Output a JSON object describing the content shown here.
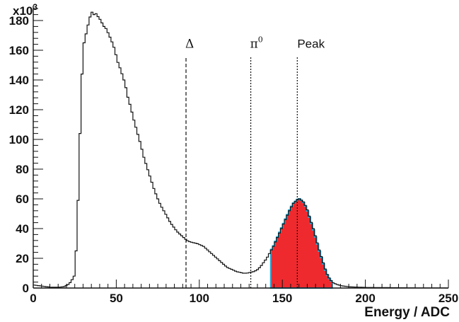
{
  "chart_data": {
    "type": "histogram",
    "title": "",
    "xlabel": "Energy / ADC",
    "ylabel": "",
    "y_multiplier": "x10",
    "y_multiplier_exp": "3",
    "xlim": [
      0,
      250
    ],
    "ylim": [
      0,
      190
    ],
    "x_ticks": [
      0,
      50,
      100,
      150,
      200,
      250
    ],
    "y_ticks": [
      0,
      20,
      40,
      60,
      80,
      100,
      120,
      140,
      160,
      180
    ],
    "grid": false,
    "legend": "none",
    "histogram_x": [
      0,
      10,
      15,
      18,
      20,
      22,
      24,
      25,
      26,
      27,
      28,
      29,
      30,
      31,
      32,
      33,
      34,
      35,
      36,
      37,
      38,
      39,
      40,
      41,
      42,
      43,
      44,
      45,
      46,
      47,
      48,
      49,
      50,
      52,
      54,
      55,
      56,
      58,
      60,
      62,
      64,
      66,
      68,
      70,
      72,
      74,
      76,
      78,
      80,
      82,
      84,
      86,
      88,
      90,
      92,
      94,
      96,
      98,
      100,
      102,
      104,
      106,
      108,
      110,
      112,
      114,
      116,
      118,
      120,
      122,
      124,
      126,
      128,
      130,
      132,
      134,
      136,
      138,
      140,
      142,
      144,
      146,
      148,
      150,
      152,
      154,
      156,
      158,
      159,
      160,
      162,
      164,
      166,
      168,
      170,
      172,
      174,
      176,
      178,
      180,
      182,
      185,
      190,
      200,
      210,
      220,
      230,
      240,
      250
    ],
    "histogram_y": [
      2,
      0.5,
      0.5,
      1,
      2,
      4,
      8,
      20,
      45,
      80,
      120,
      150,
      165,
      170,
      175,
      180,
      184,
      186,
      184,
      185,
      183,
      182,
      180,
      178,
      176,
      175,
      173,
      170,
      168,
      165,
      162,
      158,
      153,
      147,
      140,
      136,
      130,
      122,
      113,
      105,
      97,
      88,
      81,
      74,
      67,
      61,
      56,
      52,
      48,
      44,
      41,
      38,
      36,
      34,
      32,
      31,
      30.5,
      30,
      29,
      28,
      26,
      24,
      22,
      20,
      18,
      16,
      14,
      13,
      12,
      11,
      10.5,
      10,
      10,
      10.5,
      11,
      12,
      14,
      17,
      20,
      24,
      28,
      33,
      38,
      43,
      48,
      53,
      57,
      59,
      60,
      60,
      58,
      54,
      47,
      40,
      32,
      24,
      17,
      10,
      6,
      3.5,
      2.5,
      1.5,
      0.8,
      0.4,
      0.3,
      0.2,
      0.1,
      0.1,
      0
    ],
    "shaded_region": {
      "x_start": 143,
      "x_end": 180,
      "fill": "#ee2a2e",
      "edge": "#2ba9d8"
    },
    "annotations": [
      {
        "label": "Δ",
        "x": 92,
        "style": "dashed"
      },
      {
        "label": "π",
        "sup": "0",
        "x": 131,
        "style": "dotted"
      },
      {
        "label": "Peak",
        "x": 159,
        "style": "dotted"
      }
    ],
    "colors": {
      "line": "#111111",
      "fill": "#ee2a2e",
      "edge": "#2ba9d8"
    }
  }
}
